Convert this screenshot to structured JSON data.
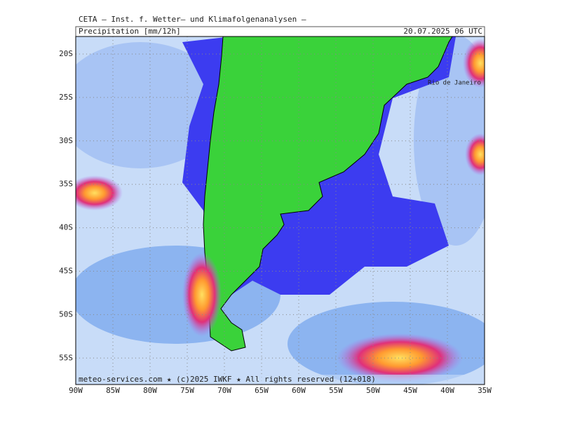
{
  "header": {
    "title": "CETA — Inst. f. Wetter— und Klimafolgenanalysen —",
    "product": "Precipitation [mm/12h]",
    "valid_time": "20.07.2025 06 UTC"
  },
  "map": {
    "lat_labels": [
      "20S",
      "25S",
      "30S",
      "35S",
      "40S",
      "45S",
      "50S",
      "55S"
    ],
    "lon_labels": [
      "90W",
      "85W",
      "80W",
      "75W",
      "70W",
      "65W",
      "60W",
      "55W",
      "50W",
      "45W",
      "40W",
      "35W"
    ],
    "city": "Rio de Janeiro"
  },
  "footer": "meteo-services.com ★ (c)2025 IWKF ★ All rights reserved (12+018)"
}
